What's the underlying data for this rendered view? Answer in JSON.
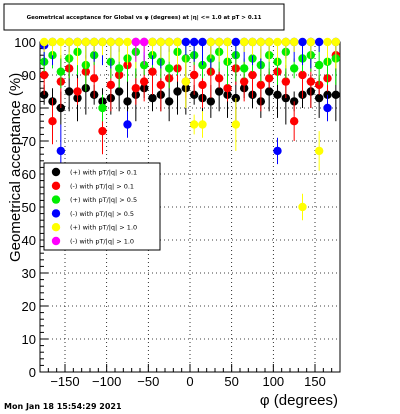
{
  "chart_data": {
    "type": "scatter",
    "title": "Geometrical acceptance for Global vs φ (degrees) at |η| <= 1.0 at pT > 0.11",
    "xlabel": "φ (degrees)",
    "ylabel": "Geometrical acceptance (%)",
    "xlim": [
      -180,
      180
    ],
    "ylim": [
      0,
      100
    ],
    "x_ticks": [
      "−150",
      "−100",
      "−50",
      "0",
      "50",
      "100",
      "150"
    ],
    "x_tick_values": [
      -150,
      -100,
      -50,
      0,
      50,
      100,
      150
    ],
    "y_ticks": [
      "0",
      "10",
      "20",
      "30",
      "40",
      "50",
      "60",
      "70",
      "80",
      "90",
      "100"
    ],
    "y_tick_values": [
      0,
      10,
      20,
      30,
      40,
      50,
      60,
      70,
      80,
      90,
      100
    ],
    "grid": true,
    "legend_position": "left-middle",
    "footer": "Mon Jan 18 15:54:29 2021",
    "series": [
      {
        "name": "(+) with pT/|q| > 0.1",
        "color": "#000000",
        "x": [
          -175,
          -165,
          -155,
          -145,
          -135,
          -125,
          -115,
          -105,
          -95,
          -85,
          -75,
          -65,
          -55,
          -45,
          -35,
          -25,
          -15,
          -5,
          5,
          15,
          25,
          35,
          45,
          55,
          65,
          75,
          85,
          95,
          105,
          115,
          125,
          135,
          145,
          155,
          165,
          175
        ],
        "y": [
          84,
          82,
          80,
          85,
          83,
          86,
          84,
          82,
          83,
          85,
          82,
          84,
          86,
          83,
          84,
          82,
          85,
          86,
          84,
          83,
          82,
          85,
          84,
          83,
          86,
          84,
          82,
          85,
          84,
          83,
          82,
          84,
          85,
          83,
          84,
          84
        ]
      },
      {
        "name": "(-) with pT/|q| > 0.1",
        "color": "#ff0000",
        "x": [
          -175,
          -165,
          -155,
          -145,
          -135,
          -125,
          -115,
          -105,
          -95,
          -85,
          -75,
          -65,
          -55,
          -45,
          -35,
          -25,
          -15,
          -5,
          5,
          15,
          25,
          35,
          45,
          55,
          65,
          75,
          85,
          95,
          105,
          115,
          125,
          135,
          145,
          155,
          165,
          175
        ],
        "y": [
          90,
          76,
          88,
          92,
          85,
          91,
          89,
          73,
          87,
          90,
          93,
          86,
          88,
          91,
          87,
          89,
          92,
          88,
          90,
          87,
          91,
          89,
          86,
          92,
          88,
          90,
          87,
          89,
          91,
          88,
          76,
          90,
          88,
          87,
          89,
          96
        ]
      },
      {
        "name": "(+) with pT/|q| > 0.5",
        "color": "#00ee00",
        "x": [
          -175,
          -165,
          -155,
          -145,
          -135,
          -125,
          -115,
          -105,
          -95,
          -85,
          -75,
          -65,
          -55,
          -45,
          -35,
          -25,
          -15,
          -5,
          5,
          15,
          25,
          35,
          45,
          55,
          65,
          75,
          85,
          95,
          105,
          115,
          125,
          135,
          145,
          155,
          165,
          175
        ],
        "y": [
          94,
          96,
          91,
          95,
          97,
          93,
          96,
          80,
          94,
          92,
          95,
          97,
          93,
          96,
          94,
          92,
          97,
          95,
          96,
          93,
          95,
          97,
          94,
          96,
          92,
          95,
          93,
          96,
          94,
          97,
          92,
          95,
          96,
          93,
          94,
          95
        ]
      },
      {
        "name": "(-) with pT/|q| > 0.5",
        "color": "#0000ff",
        "x": [
          -175,
          -165,
          -155,
          -145,
          -135,
          -125,
          -115,
          -105,
          -95,
          -85,
          -75,
          -65,
          -55,
          -45,
          -35,
          -25,
          -15,
          -5,
          5,
          15,
          25,
          35,
          45,
          55,
          65,
          75,
          85,
          95,
          105,
          115,
          125,
          135,
          145,
          155,
          165,
          175
        ],
        "y": [
          99,
          100,
          67,
          100,
          100,
          100,
          100,
          100,
          100,
          100,
          75,
          100,
          100,
          100,
          100,
          100,
          100,
          100,
          100,
          100,
          100,
          100,
          100,
          100,
          100,
          100,
          100,
          100,
          67,
          100,
          100,
          100,
          100,
          100,
          80,
          100
        ]
      },
      {
        "name": "(+) with pT/|q| > 1.0",
        "color": "#ffff00",
        "x": [
          -175,
          -165,
          -155,
          -145,
          -135,
          -125,
          -115,
          -105,
          -95,
          -85,
          -75,
          -65,
          -55,
          -45,
          -35,
          -25,
          -15,
          -5,
          5,
          15,
          25,
          35,
          45,
          55,
          65,
          75,
          85,
          95,
          105,
          115,
          125,
          135,
          145,
          155,
          165,
          175
        ],
        "y": [
          100,
          100,
          100,
          100,
          100,
          100,
          100,
          100,
          100,
          100,
          100,
          100,
          100,
          100,
          100,
          100,
          100,
          88,
          75,
          75,
          100,
          100,
          100,
          75,
          100,
          100,
          100,
          100,
          100,
          100,
          100,
          50,
          100,
          67,
          100,
          100
        ]
      },
      {
        "name": "(-) with pT/|q| > 1.0",
        "color": "#ff00ff",
        "x": [
          -65,
          -55
        ],
        "y": [
          100,
          100
        ]
      }
    ]
  }
}
